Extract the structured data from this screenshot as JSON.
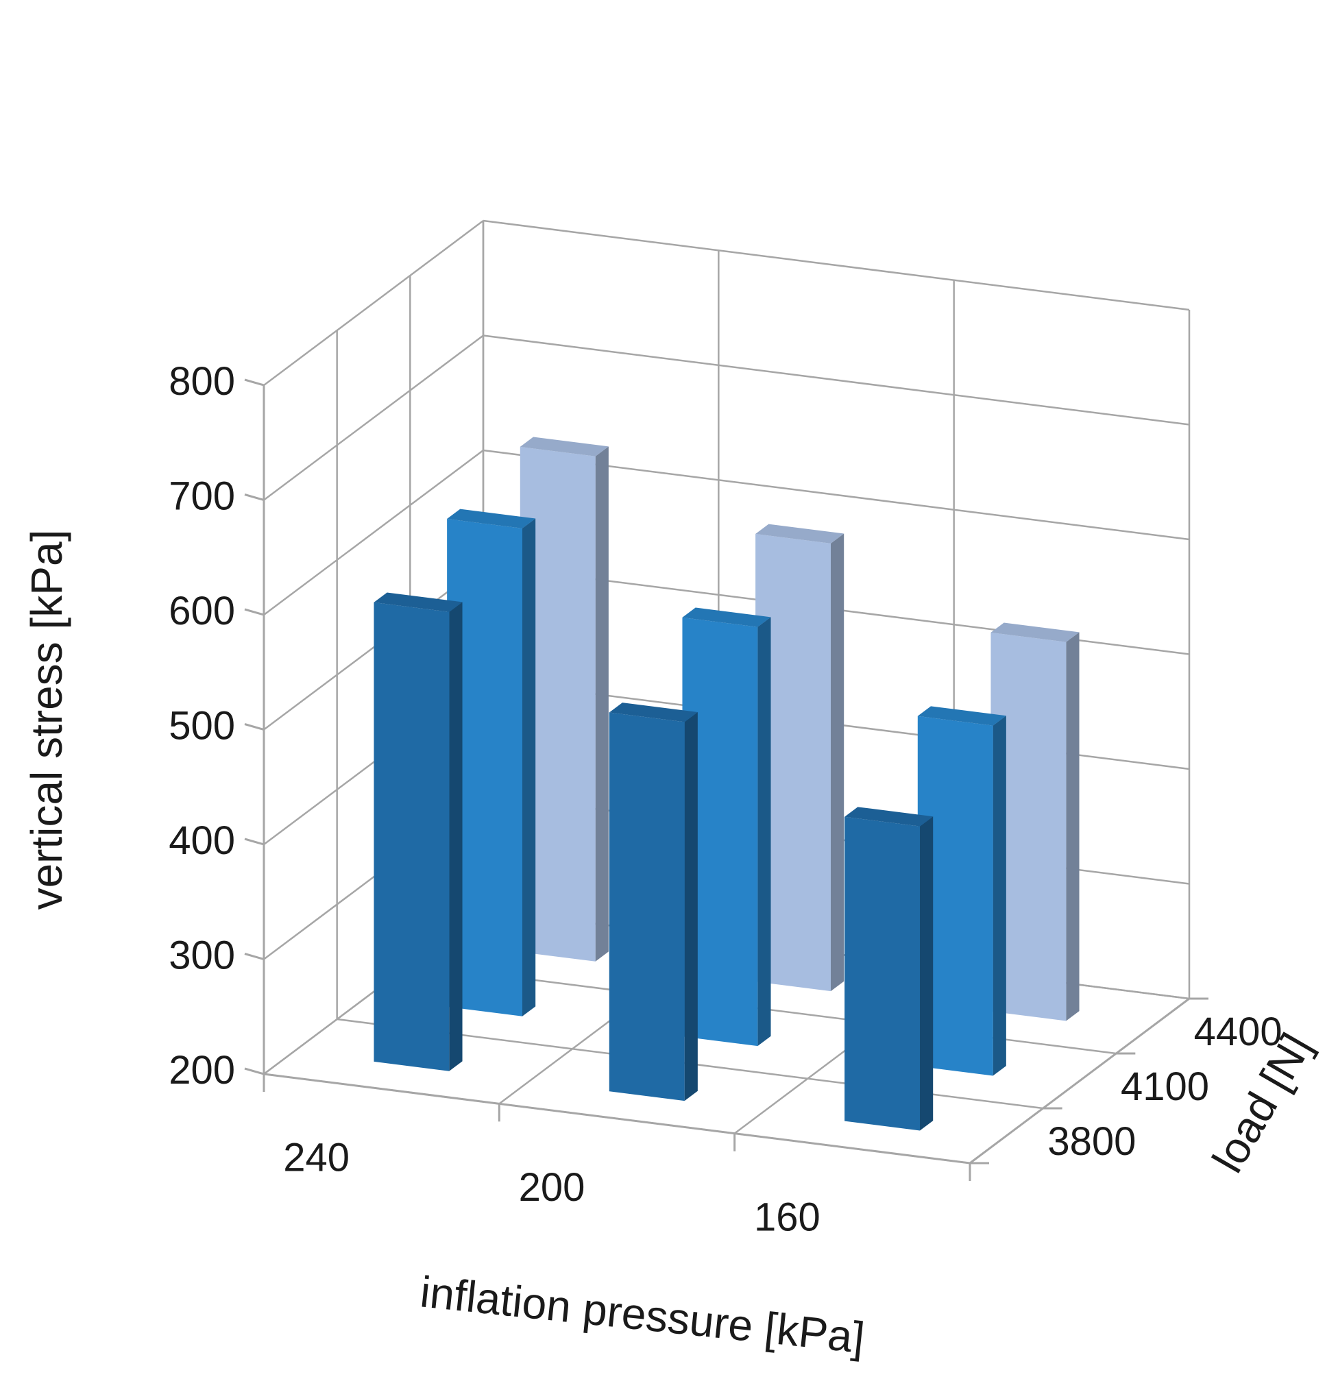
{
  "chart_data": {
    "type": "bar",
    "subtype": "3d-column",
    "title": "",
    "ylabel": "vertical stress [kPa]",
    "xlabel": "inflation pressure  [kPa]",
    "zlabel": "load [N]",
    "ylim": [
      200,
      800
    ],
    "yticks": [
      "200",
      "300",
      "400",
      "500",
      "600",
      "700",
      "800"
    ],
    "categories": [
      "240",
      "200",
      "160"
    ],
    "series": [
      {
        "name": "3800",
        "color": "#1f6aa5",
        "values": [
          600,
          530,
          465
        ]
      },
      {
        "name": "4100",
        "color": "#2783c8",
        "values": [
          625,
          565,
          505
        ]
      },
      {
        "name": "4400",
        "color": "#a7bde0",
        "values": [
          640,
          590,
          530
        ]
      }
    ],
    "grid": true,
    "legend": "none"
  }
}
